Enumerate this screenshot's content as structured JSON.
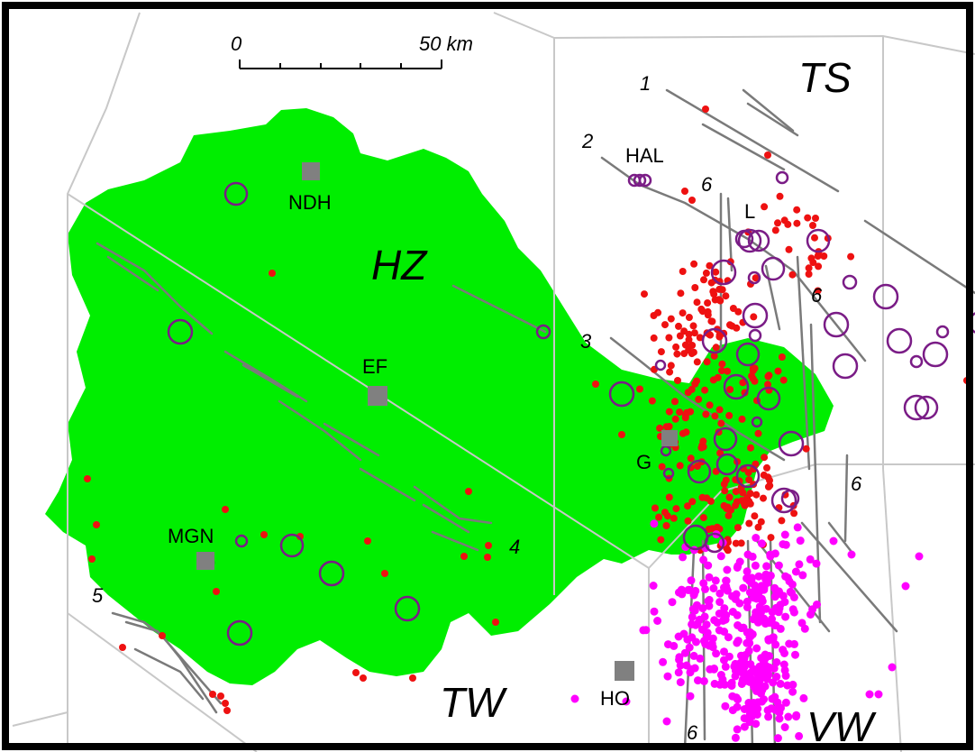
{
  "colors": {
    "region_fill": "#00ee00",
    "boundary": "#c8c8c8",
    "fault": "#7a7a7a",
    "red_dot": "#ee1111",
    "magenta_dot": "#ff00ff",
    "circle": "#7a1c86",
    "city_marker": "#808080",
    "frame": "#000000"
  },
  "scale_bar": {
    "start_label": "0",
    "end_label": "50 km"
  },
  "zones": {
    "hz": "HZ",
    "ts": "TS",
    "tw": "TW",
    "vw": "VW"
  },
  "cities": {
    "ndh": "NDH",
    "ef": "EF",
    "mgn": "MGN",
    "ho": "HO",
    "hal": "HAL",
    "l": "L",
    "g": "G"
  },
  "faults": [
    "1",
    "2",
    "3",
    "4",
    "5",
    "6",
    "6",
    "6",
    "6"
  ],
  "legend_symbols": [
    "red-dot",
    "magenta-dot",
    "purple-circle",
    "gray-square"
  ]
}
